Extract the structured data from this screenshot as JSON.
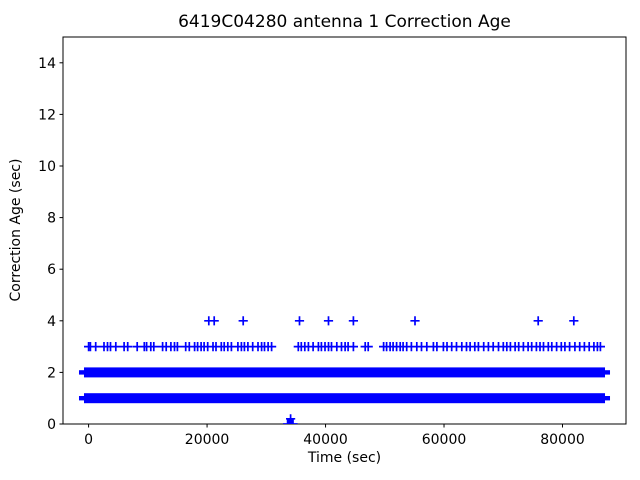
{
  "chart_data": {
    "type": "scatter",
    "title": "6419C04280 antenna 1 Correction Age",
    "xlabel": "Time (sec)",
    "ylabel": "Correction Age (sec)",
    "marker": "+",
    "marker_color": "#0000ff",
    "background_color": "#ffffff",
    "grid": false,
    "legend": null,
    "xlim": [
      -4320,
      90720
    ],
    "ylim": [
      0,
      15
    ],
    "xticks": [
      0,
      20000,
      40000,
      60000,
      80000
    ],
    "yticks": [
      0,
      2,
      4,
      6,
      8,
      10,
      12,
      14
    ],
    "series": [
      {
        "name": "correction-age-1sec-band",
        "kind": "dense_band",
        "y": 1,
        "x_start": 0,
        "x_end": 86400
      },
      {
        "name": "correction-age-2sec-band",
        "kind": "dense_band",
        "y": 2,
        "x_start": 0,
        "x_end": 86400
      },
      {
        "name": "correction-age-3sec-points",
        "kind": "points",
        "y": 3,
        "x": [
          0,
          300,
          1200,
          2600,
          3200,
          3700,
          4600,
          6000,
          6600,
          8200,
          9400,
          9800,
          10500,
          11000,
          12500,
          13100,
          13900,
          14500,
          15000,
          16400,
          17000,
          17900,
          18400,
          19000,
          19500,
          20100,
          21000,
          21500,
          22400,
          22900,
          23500,
          24100,
          25200,
          25800,
          26300,
          26900,
          27700,
          28600,
          29200,
          29700,
          30300,
          30900,
          35400,
          35900,
          36500,
          37100,
          37900,
          38800,
          39300,
          39900,
          40500,
          41000,
          41900,
          42700,
          43300,
          43800,
          44700,
          46700,
          47200,
          49800,
          50300,
          50900,
          51400,
          52000,
          52600,
          53100,
          53700,
          54500,
          55400,
          56200,
          57100,
          58200,
          58800,
          59900,
          60500,
          61300,
          62100,
          63000,
          63800,
          64400,
          65200,
          65800,
          66700,
          67500,
          68300,
          69200,
          70000,
          70600,
          71200,
          72000,
          72600,
          73400,
          74200,
          74800,
          75600,
          76200,
          76800,
          77600,
          78200,
          79000,
          79800,
          80400,
          81200,
          82100,
          82900,
          83700,
          84500,
          85300,
          85900,
          86400
        ]
      },
      {
        "name": "correction-age-4sec-points",
        "kind": "points",
        "y": 4,
        "x": [
          20300,
          21200,
          26100,
          35600,
          40500,
          44700,
          55100,
          75900,
          81900
        ]
      },
      {
        "name": "correction-age-0sec-cluster",
        "kind": "points",
        "y": 0,
        "x": [
          33600,
          33750,
          33900,
          34050,
          34200,
          34350,
          34500
        ]
      },
      {
        "name": "correction-age-low-point",
        "kind": "points",
        "y": 0.2,
        "x": [
          34100
        ]
      }
    ]
  }
}
